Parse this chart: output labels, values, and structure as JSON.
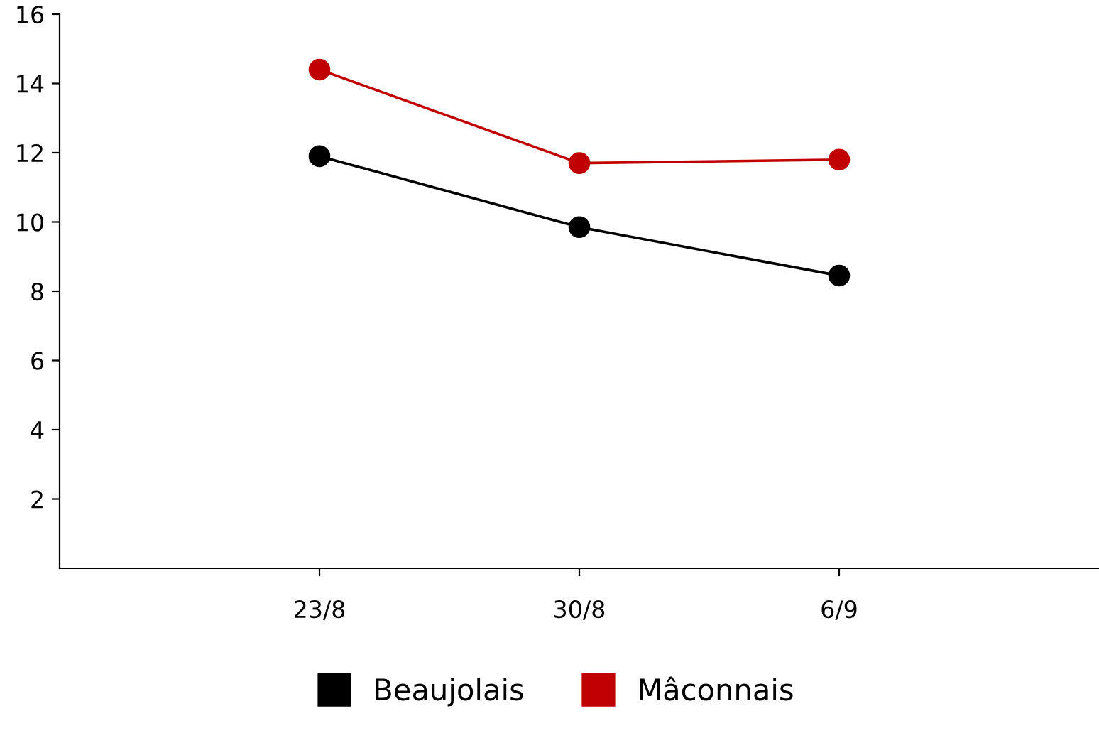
{
  "chart_data": {
    "type": "line",
    "categories": [
      "23/8",
      "30/8",
      "6/9"
    ],
    "series": [
      {
        "name": "Beaujolais",
        "color": "#000000",
        "values": [
          11.9,
          9.85,
          8.45
        ]
      },
      {
        "name": "Mâconnais",
        "color": "#c00000",
        "values": [
          14.4,
          11.7,
          11.8
        ]
      }
    ],
    "ylim": [
      0,
      16
    ],
    "yticks": [
      2,
      4,
      6,
      8,
      10,
      12,
      14,
      16
    ],
    "marker": "circle",
    "line_style": "solid",
    "grid": false,
    "legend": "bottom"
  }
}
